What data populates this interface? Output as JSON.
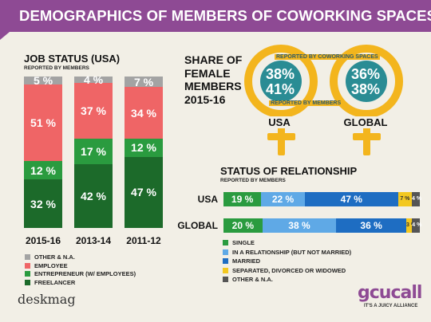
{
  "header": {
    "title": "DEMOGRAPHICS OF MEMBERS OF COWORKING SPACES"
  },
  "colors": {
    "header": "#8e4a94",
    "other": "#a3a3a3",
    "employee": "#ef6566",
    "entrepreneur": "#2a9b3f",
    "freelancer": "#1c6a2a",
    "venus": "#f3b51d",
    "venus_circle": "#2a8c94",
    "single": "#2a9b3f",
    "relationship": "#5fa9e6",
    "married": "#1e6dc2",
    "separated": "#f3c820",
    "rel_other": "#555555"
  },
  "job_status": {
    "title": "JOB STATUS (USA)",
    "subtitle": "REPORTED BY MEMBERS",
    "legend": [
      {
        "key": "other",
        "label": "OTHER & N.A."
      },
      {
        "key": "employee",
        "label": "EMPLOYEE"
      },
      {
        "key": "entrepreneur",
        "label": "ENTREPRENEUR (W/ EMPLOYEES)"
      },
      {
        "key": "freelancer",
        "label": "FREELANCER"
      }
    ]
  },
  "female_share": {
    "title_lines": [
      "SHARE OF",
      "FEMALE",
      "MEMBERS",
      "2015-16"
    ],
    "label_spaces": "REPORTED BY COWORKING SPACES",
    "label_members": "REPORTED BY MEMBERS",
    "regions": [
      {
        "name": "USA",
        "spaces": "38%",
        "members": "41%"
      },
      {
        "name": "GLOBAL",
        "spaces": "36%",
        "members": "38%"
      }
    ]
  },
  "relationship": {
    "title": "STATUS OF RELATIONSHIP",
    "subtitle": "REPORTED BY MEMBERS",
    "legend": [
      {
        "key": "single",
        "label": "SINGLE"
      },
      {
        "key": "relationship",
        "label": "IN A RELATIONSHIP (BUT NOT MARRIED)"
      },
      {
        "key": "married",
        "label": "MARRIED"
      },
      {
        "key": "separated",
        "label": "SEPARATED, DIVORCED OR WIDOWED"
      },
      {
        "key": "rel_other",
        "label": "OTHER & N.A."
      }
    ]
  },
  "logos": {
    "left": "deskmag",
    "right_main": "gcucall",
    "right_tag": "IT'S A JUICY ALLIANCE"
  },
  "chart_data": [
    {
      "type": "bar",
      "title": "JOB STATUS (USA)",
      "subtitle": "REPORTED BY MEMBERS",
      "stacked": true,
      "categories": [
        "2015-16",
        "2013-14",
        "2011-12"
      ],
      "series": [
        {
          "name": "FREELANCER",
          "key": "freelancer",
          "values": [
            32,
            42,
            47
          ]
        },
        {
          "name": "ENTREPRENEUR (W/ EMPLOYEES)",
          "key": "entrepreneur",
          "values": [
            12,
            17,
            12
          ]
        },
        {
          "name": "EMPLOYEE",
          "key": "employee",
          "values": [
            51,
            37,
            34
          ]
        },
        {
          "name": "OTHER & N.A.",
          "key": "other",
          "values": [
            5,
            4,
            7
          ]
        }
      ],
      "labels": [
        [
          "32 %",
          "12 %",
          "51 %",
          "5 %"
        ],
        [
          "42 %",
          "17 %",
          "37 %",
          "4 %"
        ],
        [
          "47 %",
          "12 %",
          "34 %",
          "7 %"
        ]
      ],
      "ylim": [
        0,
        100
      ]
    },
    {
      "type": "bar",
      "orientation": "horizontal",
      "stacked": true,
      "title": "STATUS OF RELATIONSHIP",
      "subtitle": "REPORTED BY MEMBERS",
      "categories": [
        "USA",
        "GLOBAL"
      ],
      "series": [
        {
          "name": "SINGLE",
          "key": "single",
          "values": [
            19,
            20
          ]
        },
        {
          "name": "IN A RELATIONSHIP (BUT NOT MARRIED)",
          "key": "relationship",
          "values": [
            22,
            38
          ]
        },
        {
          "name": "MARRIED",
          "key": "married",
          "values": [
            47,
            36
          ]
        },
        {
          "name": "SEPARATED, DIVORCED OR WIDOWED",
          "key": "separated",
          "values": [
            7,
            3
          ]
        },
        {
          "name": "OTHER & N.A.",
          "key": "rel_other",
          "values": [
            4,
            4
          ]
        }
      ],
      "labels": [
        [
          "19 %",
          "22 %",
          "47 %",
          "7 %",
          "4 %"
        ],
        [
          "20 %",
          "38 %",
          "36 %",
          "3 %",
          "4 %"
        ]
      ],
      "xlim": [
        0,
        100
      ]
    }
  ]
}
